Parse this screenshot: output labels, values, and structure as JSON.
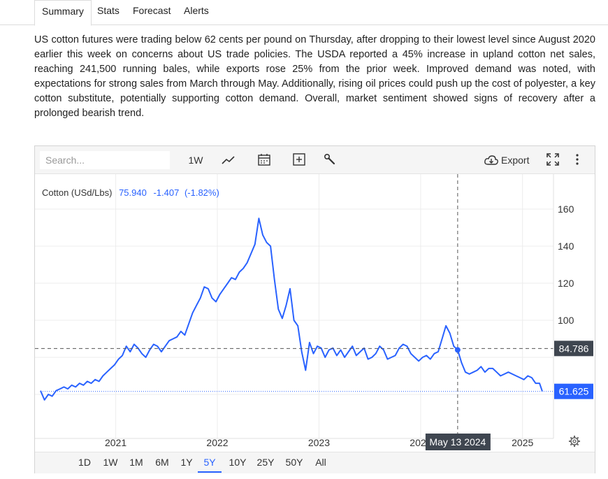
{
  "tabs": [
    {
      "label": "Summary",
      "active": true
    },
    {
      "label": "Stats",
      "active": false
    },
    {
      "label": "Forecast",
      "active": false
    },
    {
      "label": "Alerts",
      "active": false
    }
  ],
  "summary_text": "US cotton futures were trading below 62 cents per pound on Thursday, after dropping to their lowest level since August 2020 earlier this week on concerns about US trade policies. The USDA reported a 45% increase in upland cotton net sales, reaching 241,500 running bales, while exports rose 25% from the prior week. Improved demand was noted, with expectations for strong sales from March through May. Additionally, rising oil prices could push up the cost of polyester, a key cotton substitute, potentially supporting cotton demand. Overall, market sentiment showed signs of recovery after a prolonged bearish trend.",
  "toolbar": {
    "search_placeholder": "Search...",
    "interval_label": "1W",
    "export_label": "Export",
    "icons": [
      "line-chart-icon",
      "calendar-icon",
      "plus-box-icon",
      "wrench-icon",
      "cloud-download-icon",
      "fullscreen-icon",
      "more-vertical-icon"
    ]
  },
  "legend": {
    "name": "Cotton (USd/Lbs)",
    "price": "75.940",
    "change": "-1.407",
    "change_pct": "(-1.82%)"
  },
  "crosshair": {
    "date_label": "May 13 2024",
    "price_label": "84.786"
  },
  "last_price_label": "61.625",
  "colors": {
    "line": "#2962ff",
    "text_blue": "#2962ff",
    "label_dark": "#3f4650",
    "last_price_bg": "#2962ff"
  },
  "ranges": [
    {
      "label": "1D",
      "active": false
    },
    {
      "label": "1W",
      "active": false
    },
    {
      "label": "1M",
      "active": false
    },
    {
      "label": "6M",
      "active": false
    },
    {
      "label": "1Y",
      "active": false
    },
    {
      "label": "5Y",
      "active": true
    },
    {
      "label": "10Y",
      "active": false
    },
    {
      "label": "25Y",
      "active": false
    },
    {
      "label": "50Y",
      "active": false
    },
    {
      "label": "All",
      "active": false
    }
  ],
  "chart_data": {
    "type": "line",
    "series": [
      {
        "name": "Cotton (USd/Lbs)",
        "x": [
          "2020-04-06",
          "2020-04-20",
          "2020-05-04",
          "2020-05-18",
          "2020-06-01",
          "2020-06-15",
          "2020-06-29",
          "2020-07-13",
          "2020-07-27",
          "2020-08-10",
          "2020-08-24",
          "2020-09-07",
          "2020-09-21",
          "2020-10-05",
          "2020-10-19",
          "2020-11-02",
          "2020-11-16",
          "2020-11-30",
          "2020-12-14",
          "2020-12-28",
          "2021-01-11",
          "2021-01-25",
          "2021-02-08",
          "2021-02-22",
          "2021-03-08",
          "2021-03-22",
          "2021-04-05",
          "2021-04-19",
          "2021-05-03",
          "2021-05-17",
          "2021-05-31",
          "2021-06-14",
          "2021-06-28",
          "2021-07-12",
          "2021-07-26",
          "2021-08-09",
          "2021-08-23",
          "2021-09-06",
          "2021-09-20",
          "2021-10-04",
          "2021-10-18",
          "2021-11-01",
          "2021-11-15",
          "2021-11-29",
          "2021-12-13",
          "2021-12-27",
          "2022-01-10",
          "2022-01-24",
          "2022-02-07",
          "2022-02-21",
          "2022-03-07",
          "2022-03-21",
          "2022-04-04",
          "2022-04-18",
          "2022-05-02",
          "2022-05-16",
          "2022-05-30",
          "2022-06-13",
          "2022-06-27",
          "2022-07-11",
          "2022-07-25",
          "2022-08-08",
          "2022-08-22",
          "2022-09-05",
          "2022-09-19",
          "2022-10-03",
          "2022-10-17",
          "2022-10-31",
          "2022-11-14",
          "2022-11-28",
          "2022-12-12",
          "2022-12-26",
          "2023-01-09",
          "2023-01-23",
          "2023-02-06",
          "2023-02-20",
          "2023-03-06",
          "2023-03-20",
          "2023-04-03",
          "2023-04-17",
          "2023-05-01",
          "2023-05-15",
          "2023-05-29",
          "2023-06-12",
          "2023-06-26",
          "2023-07-10",
          "2023-07-24",
          "2023-08-07",
          "2023-08-21",
          "2023-09-04",
          "2023-09-18",
          "2023-10-02",
          "2023-10-16",
          "2023-10-30",
          "2023-11-13",
          "2023-11-27",
          "2023-12-11",
          "2023-12-25",
          "2024-01-08",
          "2024-01-22",
          "2024-02-05",
          "2024-02-19",
          "2024-03-04",
          "2024-03-18",
          "2024-04-01",
          "2024-04-15",
          "2024-04-29",
          "2024-05-13",
          "2024-05-27",
          "2024-06-10",
          "2024-06-24",
          "2024-07-08",
          "2024-07-22",
          "2024-08-05",
          "2024-08-19",
          "2024-09-02",
          "2024-09-16",
          "2024-09-30",
          "2024-10-14",
          "2024-10-28",
          "2024-11-11",
          "2024-11-25",
          "2024-12-09",
          "2024-12-23",
          "2025-01-06",
          "2025-01-20",
          "2025-02-03",
          "2025-02-17",
          "2025-03-03",
          "2025-03-13"
        ],
        "y": [
          62,
          57,
          60,
          59,
          62,
          63,
          64,
          63,
          65,
          64,
          66,
          65,
          67,
          66,
          68,
          67,
          70,
          72,
          74,
          76,
          79,
          81,
          86,
          83,
          87,
          85,
          82,
          80,
          84,
          87,
          86,
          83,
          86,
          89,
          90,
          91,
          94,
          92,
          98,
          104,
          108,
          112,
          118,
          117,
          112,
          110,
          114,
          117,
          120,
          123,
          122,
          126,
          128,
          131,
          136,
          141,
          155,
          146,
          142,
          140,
          122,
          106,
          101,
          108,
          117,
          100,
          97,
          83,
          73,
          88,
          82,
          86,
          85,
          80,
          84,
          85,
          81,
          84,
          80,
          83,
          86,
          81,
          83,
          85,
          79,
          80,
          82,
          86,
          84,
          79,
          80,
          81,
          85,
          87,
          86,
          82,
          80,
          78,
          80,
          81,
          79,
          82,
          83,
          90,
          97,
          93,
          86,
          84,
          77,
          72,
          71,
          72,
          73,
          75,
          72,
          74,
          74,
          72,
          70,
          71,
          72,
          71,
          70,
          69,
          68,
          70,
          69,
          66,
          66,
          61.625
        ]
      }
    ],
    "ylim": [
      40,
      170
    ],
    "yticks": [
      100,
      120,
      140,
      160
    ],
    "xticks": [
      "2021",
      "2022",
      "2023",
      "2024",
      "2025"
    ],
    "crosshair_x": "2024-05-13",
    "crosshair_y": 84.786,
    "grid": true
  }
}
